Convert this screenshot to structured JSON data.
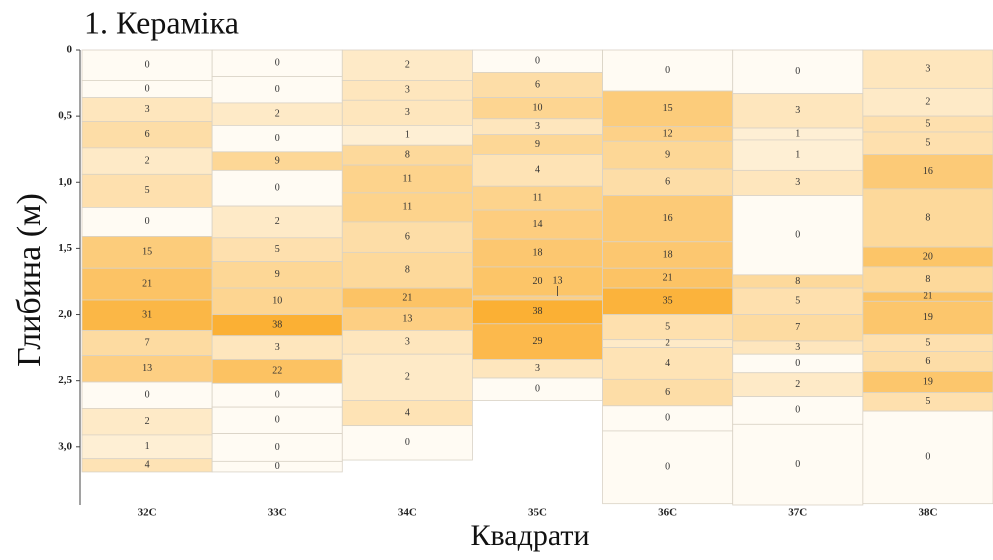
{
  "chart_data": {
    "type": "strip_log",
    "title": "1. Кераміка",
    "y_label": "Глибина (м)",
    "x_label": "Квадрати",
    "ylim": [
      0,
      3.44
    ],
    "yticks": [
      0,
      {
        "value": 0.5,
        "label": "0,5"
      },
      {
        "value": 1,
        "label": "1,0"
      },
      {
        "value": 1.5,
        "label": "1,5"
      },
      {
        "value": 2,
        "label": "2,0"
      },
      {
        "value": 2.5,
        "label": "2,5"
      },
      {
        "value": 3,
        "label": "3,0"
      }
    ],
    "color_low": "#fffbf3",
    "color_high": "#fbb034",
    "columns": [
      {
        "name": "32C",
        "thickness": [
          0.23,
          0.13,
          0.18,
          0.2,
          0.2,
          0.25,
          0.22,
          0.24,
          0.24,
          0.23,
          0.19,
          0.2,
          0.2,
          0.2,
          0.18,
          0.1
        ],
        "counts": [
          0,
          0,
          3,
          6,
          2,
          5,
          0,
          15,
          21,
          31,
          7,
          13,
          0,
          2,
          1,
          4
        ]
      },
      {
        "name": "33C",
        "thickness": [
          0.2,
          0.2,
          0.17,
          0.2,
          0.14,
          0.27,
          0.24,
          0.18,
          0.2,
          0.2,
          0.16,
          0.18,
          0.18,
          0.18,
          0.2,
          0.21,
          0.08
        ],
        "counts": [
          0,
          0,
          2,
          0,
          9,
          0,
          2,
          5,
          9,
          10,
          38,
          3,
          22,
          0,
          0,
          0,
          0
        ]
      },
      {
        "name": "34C",
        "thickness": [
          0.23,
          0.15,
          0.19,
          0.15,
          0.15,
          0.21,
          0.22,
          0.23,
          0.27,
          0.15,
          0.17,
          0.18,
          0.35,
          0.19,
          0.26
        ],
        "counts": [
          2,
          3,
          3,
          1,
          8,
          11,
          11,
          6,
          8,
          21,
          13,
          3,
          2,
          4,
          0
        ]
      },
      {
        "name": "35C",
        "thickness": [
          0.17,
          0.19,
          0.16,
          0.12,
          0.15,
          0.24,
          0.18,
          0.22,
          0.21,
          0.22,
          0.03,
          0.18,
          0.27,
          0.14,
          0.17
        ],
        "counts": [
          0,
          6,
          10,
          3,
          9,
          4,
          11,
          14,
          18,
          20,
          13,
          38,
          29,
          3,
          0
        ]
      },
      {
        "name": "36C",
        "thickness": [
          0.31,
          0.27,
          0.11,
          0.21,
          0.2,
          0.35,
          0.2,
          0.15,
          0.2,
          0.19,
          0.06,
          0.24,
          0.2,
          0.19,
          0.55
        ],
        "counts": [
          0,
          15,
          12,
          9,
          6,
          16,
          18,
          21,
          35,
          5,
          2,
          4,
          6,
          0,
          0
        ]
      },
      {
        "name": "37C",
        "thickness": [
          0.33,
          0.26,
          0.09,
          0.23,
          0.19,
          0.6,
          0.1,
          0.2,
          0.2,
          0.1,
          0.14,
          0.18,
          0.21,
          0.61
        ],
        "counts": [
          0,
          3,
          1,
          1,
          3,
          0,
          8,
          5,
          7,
          3,
          0,
          2,
          0,
          0
        ]
      },
      {
        "name": "38C",
        "thickness": [
          0.29,
          0.21,
          0.12,
          0.17,
          0.26,
          0.44,
          0.15,
          0.19,
          0.07,
          0.25,
          0.13,
          0.15,
          0.16,
          0.14,
          0.7
        ],
        "counts": [
          3,
          2,
          5,
          5,
          16,
          8,
          20,
          8,
          21,
          19,
          5,
          6,
          19,
          5,
          0
        ]
      }
    ]
  }
}
